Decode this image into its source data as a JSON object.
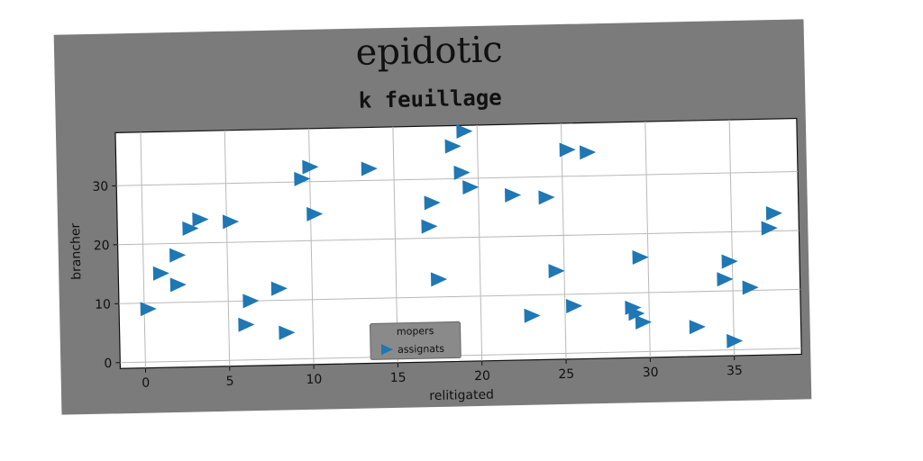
{
  "figure": {
    "suptitle": "epidotic",
    "background": "#7b7b7b"
  },
  "chart_data": {
    "type": "scatter",
    "title": "k feuillage",
    "xlabel": "relitigated",
    "ylabel": "brancher",
    "xlim": [
      -1.5,
      39
    ],
    "ylim": [
      -1,
      39
    ],
    "xticks": [
      0,
      5,
      10,
      15,
      20,
      25,
      30,
      35
    ],
    "yticks": [
      0,
      10,
      20,
      30
    ],
    "grid": true,
    "legend": {
      "title": "mopers",
      "position": "lower-center"
    },
    "marker": "triangle-right",
    "series": [
      {
        "name": "assignats",
        "color": "#1f77b4",
        "points": [
          [
            0.2,
            9
          ],
          [
            1,
            15
          ],
          [
            2,
            18
          ],
          [
            2,
            13
          ],
          [
            2.8,
            22.5
          ],
          [
            3.4,
            24
          ],
          [
            5.2,
            23.5
          ],
          [
            6,
            6
          ],
          [
            6.3,
            10
          ],
          [
            8,
            12
          ],
          [
            8.4,
            4.5
          ],
          [
            9.5,
            30.5
          ],
          [
            10,
            32.5
          ],
          [
            10.2,
            24.5
          ],
          [
            13.5,
            32
          ],
          [
            17,
            22
          ],
          [
            17.2,
            26
          ],
          [
            17.5,
            13
          ],
          [
            18.5,
            35.5
          ],
          [
            19,
            31
          ],
          [
            19.2,
            38
          ],
          [
            19.5,
            28.5
          ],
          [
            22,
            27
          ],
          [
            23,
            6.5
          ],
          [
            24,
            26.5
          ],
          [
            24.5,
            14
          ],
          [
            25.3,
            34.5
          ],
          [
            25.5,
            8
          ],
          [
            26.5,
            34
          ],
          [
            29,
            7.5
          ],
          [
            29.2,
            6.5
          ],
          [
            29.5,
            16
          ],
          [
            29.6,
            5
          ],
          [
            32.8,
            4
          ],
          [
            34.5,
            12
          ],
          [
            34.8,
            15
          ],
          [
            35,
            1.5
          ],
          [
            36,
            10.5
          ],
          [
            37.2,
            20.5
          ],
          [
            37.5,
            23
          ]
        ]
      }
    ]
  }
}
